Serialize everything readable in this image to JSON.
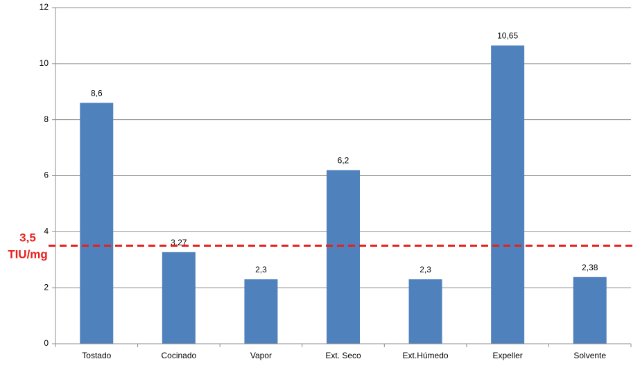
{
  "chart_data": {
    "type": "bar",
    "categories": [
      "Tostado",
      "Cocinado",
      "Vapor",
      "Ext. Seco",
      "Ext.Húmedo",
      "Expeller",
      "Solvente"
    ],
    "values": [
      8.6,
      3.27,
      2.3,
      6.2,
      2.3,
      10.65,
      2.38
    ],
    "value_labels": [
      "8,6",
      "3,27",
      "2,3",
      "6,2",
      "2,3",
      "10,65",
      "2,38"
    ],
    "color": "#4f81bd",
    "ylim": [
      0,
      12
    ],
    "yticks": [
      0,
      2,
      4,
      6,
      8,
      10,
      12
    ],
    "grid": true,
    "reference_line": {
      "value": 3.5,
      "label": "3,5",
      "unit": "TIU/mg",
      "color": "#e8201c"
    }
  }
}
